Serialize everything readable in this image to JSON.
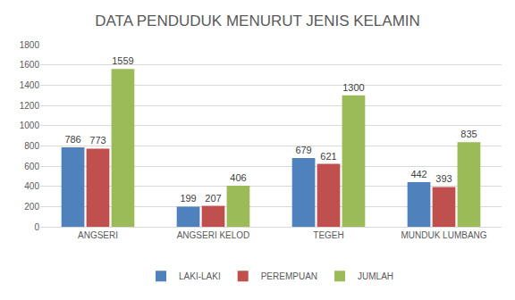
{
  "chart_data": {
    "type": "bar",
    "title": "DATA PENDUDUK MENURUT JENIS KELAMIN",
    "categories": [
      "ANGSERI",
      "ANGSERI KELOD",
      "TEGEH",
      "MUNDUK LUMBANG"
    ],
    "series": [
      {
        "name": "LAKI-LAKI",
        "color": "#4f81bd",
        "values": [
          786,
          199,
          679,
          442
        ]
      },
      {
        "name": "PEREMPUAN",
        "color": "#c0504d",
        "values": [
          773,
          207,
          621,
          393
        ]
      },
      {
        "name": "JUMLAH",
        "color": "#9bbb59",
        "values": [
          1559,
          406,
          1300,
          835
        ]
      }
    ],
    "ylim": [
      0,
      1800
    ],
    "yticks": [
      0,
      200,
      400,
      600,
      800,
      1000,
      1200,
      1400,
      1600,
      1800
    ],
    "grid": true,
    "legend": "bottom",
    "data_labels": true
  }
}
